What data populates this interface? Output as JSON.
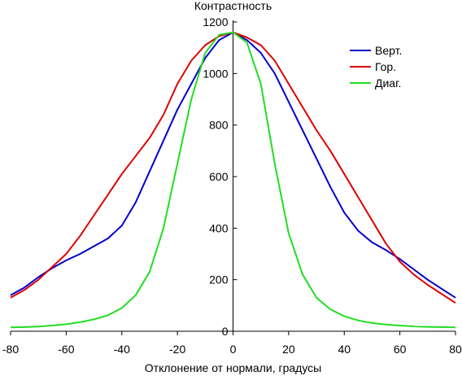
{
  "chart_data": {
    "type": "line",
    "title": "",
    "ylabel": "Контрастность",
    "xlabel": "Отклонение от нормали, градусы",
    "xlim": [
      -80,
      80
    ],
    "ylim": [
      0,
      1200
    ],
    "xticks": [
      -80,
      -60,
      -40,
      -20,
      0,
      20,
      40,
      60,
      80
    ],
    "yticks": [
      0,
      200,
      400,
      600,
      800,
      1000,
      1200
    ],
    "xtick_labels": [
      "-80",
      "-60",
      "-40",
      "-20",
      "0",
      "20",
      "40",
      "60",
      "80"
    ],
    "ytick_labels": [
      "0",
      "200",
      "400",
      "600",
      "800",
      "1000",
      "1200"
    ],
    "grid": false,
    "legend_position": "top-right",
    "series": [
      {
        "name": "Верт.",
        "color": "#0000cc",
        "x": [
          -80,
          -75,
          -70,
          -65,
          -60,
          -55,
          -50,
          -45,
          -40,
          -35,
          -30,
          -25,
          -20,
          -15,
          -10,
          -5,
          0,
          5,
          10,
          15,
          20,
          25,
          30,
          35,
          40,
          45,
          50,
          55,
          60,
          65,
          70,
          75,
          80
        ],
        "y": [
          140,
          170,
          210,
          245,
          275,
          300,
          330,
          360,
          410,
          500,
          620,
          740,
          860,
          960,
          1060,
          1130,
          1160,
          1130,
          1080,
          1000,
          890,
          780,
          670,
          560,
          460,
          390,
          345,
          315,
          280,
          240,
          200,
          165,
          130
        ]
      },
      {
        "name": "Гор.",
        "color": "#dd0000",
        "x": [
          -80,
          -75,
          -70,
          -65,
          -60,
          -55,
          -50,
          -45,
          -40,
          -35,
          -30,
          -25,
          -20,
          -15,
          -10,
          -5,
          0,
          5,
          10,
          15,
          20,
          25,
          30,
          35,
          40,
          45,
          50,
          55,
          60,
          65,
          70,
          75,
          80
        ],
        "y": [
          130,
          160,
          200,
          250,
          300,
          370,
          450,
          530,
          610,
          680,
          750,
          840,
          960,
          1050,
          1110,
          1145,
          1160,
          1140,
          1110,
          1050,
          960,
          870,
          780,
          700,
          610,
          520,
          430,
          340,
          270,
          220,
          180,
          145,
          110
        ]
      },
      {
        "name": "Диаг.",
        "color": "#22dd22",
        "x": [
          -80,
          -75,
          -70,
          -65,
          -60,
          -55,
          -50,
          -45,
          -40,
          -35,
          -30,
          -25,
          -20,
          -15,
          -10,
          -5,
          0,
          5,
          10,
          15,
          20,
          25,
          30,
          35,
          40,
          45,
          50,
          55,
          60,
          65,
          70,
          75,
          80
        ],
        "y": [
          15,
          16,
          18,
          22,
          27,
          35,
          46,
          62,
          90,
          140,
          230,
          400,
          650,
          900,
          1080,
          1150,
          1160,
          1120,
          960,
          650,
          380,
          220,
          130,
          85,
          58,
          42,
          32,
          26,
          22,
          19,
          17,
          16,
          15
        ]
      }
    ]
  }
}
